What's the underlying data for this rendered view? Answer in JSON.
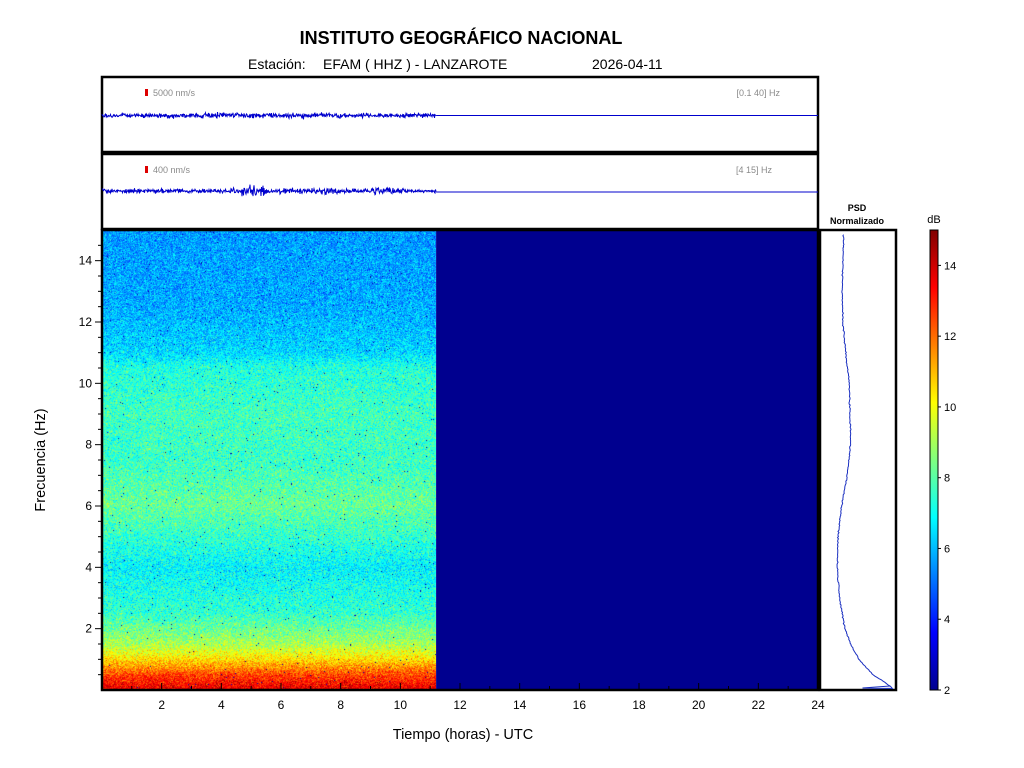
{
  "header": {
    "title": "INSTITUTO GEOGRÁFICO NACIONAL",
    "station_label": "Estación:",
    "station": "EFAM ( HHZ ) - LANZAROTE",
    "date": "2026-04-11"
  },
  "chart_data": [
    {
      "type": "line",
      "name": "waveform-broadband",
      "scale_label": "5000 nm/s",
      "band_label": "[0.1 40] Hz",
      "xlim": [
        0,
        24
      ],
      "data_end_hour": 11.2
    },
    {
      "type": "line",
      "name": "waveform-highband",
      "scale_label": "400 nm/s",
      "band_label": "[4 15] Hz",
      "xlim": [
        0,
        24
      ],
      "data_end_hour": 11.2
    },
    {
      "type": "heatmap",
      "xlabel": "Tiempo (horas) - UTC",
      "ylabel": "Frecuencia (Hz)",
      "xlim": [
        0,
        24
      ],
      "ylim": [
        0,
        15
      ],
      "x_ticks": [
        2,
        4,
        6,
        8,
        10,
        12,
        14,
        16,
        18,
        20,
        22,
        24
      ],
      "y_ticks": [
        2,
        4,
        6,
        8,
        10,
        12,
        14
      ],
      "data_end_hour": 11.2,
      "no_data_level_dB": 2,
      "mean_level_by_frequency": [
        {
          "freq": 0.1,
          "dB": 13.5
        },
        {
          "freq": 0.5,
          "dB": 12.5
        },
        {
          "freq": 1.0,
          "dB": 10.5
        },
        {
          "freq": 1.5,
          "dB": 9.0
        },
        {
          "freq": 2.5,
          "dB": 7.5
        },
        {
          "freq": 4.0,
          "dB": 6.8
        },
        {
          "freq": 5.0,
          "dB": 7.5
        },
        {
          "freq": 6.0,
          "dB": 8.2
        },
        {
          "freq": 7.5,
          "dB": 7.6
        },
        {
          "freq": 9.0,
          "dB": 7.7
        },
        {
          "freq": 10.5,
          "dB": 7.3
        },
        {
          "freq": 11.0,
          "dB": 6.4
        },
        {
          "freq": 12.5,
          "dB": 5.8
        },
        {
          "freq": 15.0,
          "dB": 5.6
        }
      ]
    },
    {
      "type": "line",
      "title_line1": "PSD",
      "title_line2": "Normalizado",
      "x_range": [
        0,
        1
      ],
      "points": [
        {
          "freq": 0.05,
          "psd": 0.98
        },
        {
          "freq": 0.2,
          "psd": 0.9
        },
        {
          "freq": 0.5,
          "psd": 0.7
        },
        {
          "freq": 1.0,
          "psd": 0.5
        },
        {
          "freq": 1.5,
          "psd": 0.38
        },
        {
          "freq": 2.0,
          "psd": 0.3
        },
        {
          "freq": 3.0,
          "psd": 0.22
        },
        {
          "freq": 4.0,
          "psd": 0.19
        },
        {
          "freq": 5.0,
          "psd": 0.2
        },
        {
          "freq": 6.0,
          "psd": 0.25
        },
        {
          "freq": 7.0,
          "psd": 0.33
        },
        {
          "freq": 8.0,
          "psd": 0.38
        },
        {
          "freq": 9.0,
          "psd": 0.37
        },
        {
          "freq": 10.0,
          "psd": 0.36
        },
        {
          "freq": 11.0,
          "psd": 0.31
        },
        {
          "freq": 12.0,
          "psd": 0.27
        },
        {
          "freq": 13.0,
          "psd": 0.26
        },
        {
          "freq": 14.0,
          "psd": 0.27
        },
        {
          "freq": 15.0,
          "psd": 0.28
        }
      ]
    },
    {
      "type": "heatmap",
      "name": "colorbar",
      "unit_label": "dB",
      "range": [
        2,
        15
      ],
      "ticks": [
        2,
        4,
        6,
        8,
        10,
        12,
        14
      ]
    }
  ],
  "colors": {
    "trace": "#0000cd",
    "scale_mark": "#dd0000",
    "no_data": "#00008f",
    "psd_line": "#1a2fc0"
  }
}
